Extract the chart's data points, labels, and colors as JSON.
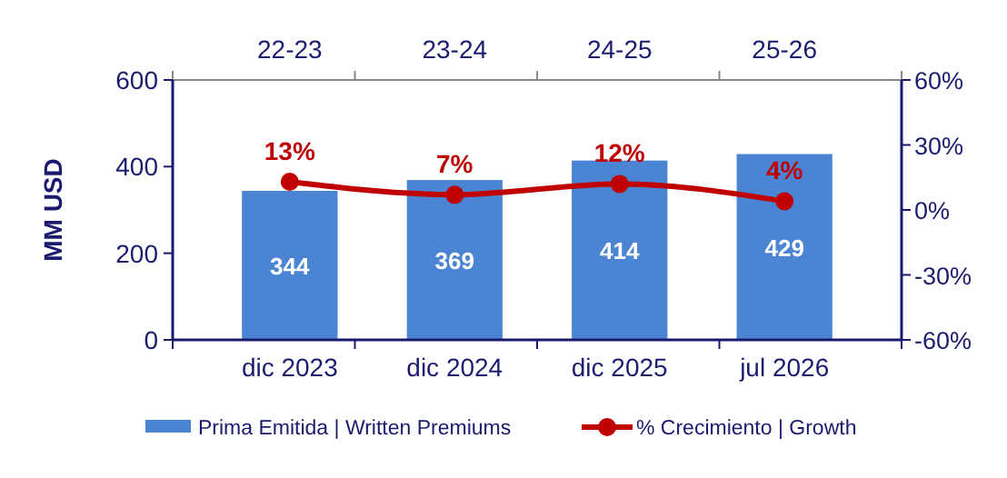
{
  "chart_data": {
    "type": "bar",
    "ylabel": "MM  USD",
    "categories": [
      "dic 2023",
      "dic 2024",
      "dic 2025",
      "jul 2026"
    ],
    "annotations": [
      "22-23",
      "23-24",
      "24-25",
      "25-26"
    ],
    "series": [
      {
        "name": "Prima Emitida | Written Premiums",
        "color": "#4a84d2",
        "values": [
          344,
          369,
          414,
          429
        ]
      },
      {
        "name": "% Crecimiento | Growth",
        "type": "line",
        "axis": "y2",
        "color": "#c00000",
        "values": [
          13,
          7,
          12,
          4
        ],
        "value_labels": [
          "13%",
          "7%",
          "12%",
          "4%"
        ]
      }
    ],
    "data_labels": true,
    "marker": "circle",
    "line_style": "solid",
    "legend": "bottom",
    "grid": false,
    "ylim": [
      0,
      600
    ],
    "yticks": [
      0,
      200,
      400,
      600
    ],
    "y2lim": [
      -60,
      60
    ],
    "y2ticks": [
      {
        "value": -60,
        "label": "-60%"
      },
      {
        "value": -30,
        "label": "-30%"
      },
      {
        "value": 0,
        "label": "0%"
      },
      {
        "value": 30,
        "label": "30%"
      },
      {
        "value": 60,
        "label": "60%"
      }
    ]
  }
}
